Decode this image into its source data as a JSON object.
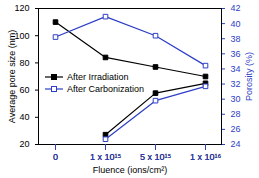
{
  "chart_data": {
    "type": "line",
    "categories": [
      "0",
      "1 x 10¹⁵",
      "5 x 10¹⁵",
      "1 x 10¹⁶"
    ],
    "xlabel": "Fluence (ions/cm²)",
    "ylabel": "Average pore size (nm)",
    "y2label": "Porosity (%)",
    "ylim": [
      20,
      120
    ],
    "yticks": [
      20,
      40,
      60,
      80,
      100,
      120
    ],
    "y2lim": [
      24,
      42
    ],
    "y2ticks": [
      24,
      26,
      28,
      30,
      32,
      34,
      36,
      38,
      40,
      42
    ],
    "legend": "left",
    "series": [
      {
        "name": "After Irradiation",
        "color": "#000000",
        "marker": "square",
        "axis": "y",
        "values": [
          110,
          84,
          77,
          70
        ]
      },
      {
        "name": "After Carbonization",
        "color": "#2e3ec6",
        "marker": "open square",
        "axis": "y",
        "values": [
          99,
          114,
          100,
          78
        ]
      },
      {
        "name": "After Irradiation",
        "color": "#000000",
        "marker": "square",
        "axis": "y2",
        "values": [
          null,
          25.3,
          30.8,
          32.1
        ]
      },
      {
        "name": "After Carbonization",
        "color": "#2e3ec6",
        "marker": "open square",
        "axis": "y2",
        "values": [
          null,
          24.7,
          29.8,
          31.7
        ]
      }
    ]
  }
}
